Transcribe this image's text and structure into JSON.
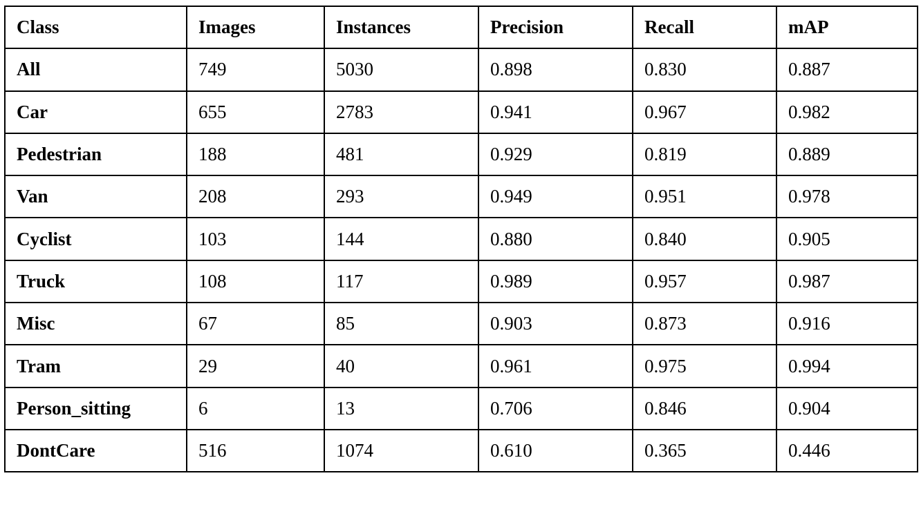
{
  "table": {
    "header": [
      "Class",
      "Images",
      "Instances",
      "Precision",
      "Recall",
      "mAP"
    ],
    "rows": [
      [
        "All",
        "749",
        "5030",
        "0.898",
        "0.830",
        "0.887"
      ],
      [
        "Car",
        "655",
        "2783",
        "0.941",
        "0.967",
        "0.982"
      ],
      [
        "Pedestrian",
        "188",
        "481",
        "0.929",
        "0.819",
        "0.889"
      ],
      [
        "Van",
        "208",
        "293",
        "0.949",
        "0.951",
        "0.978"
      ],
      [
        "Cyclist",
        "103",
        "144",
        "0.880",
        "0.840",
        "0.905"
      ],
      [
        "Truck",
        "108",
        "117",
        "0.989",
        "0.957",
        "0.987"
      ],
      [
        "Misc",
        "67",
        "85",
        "0.903",
        "0.873",
        "0.916"
      ],
      [
        "Tram",
        "29",
        "40",
        "0.961",
        "0.975",
        "0.994"
      ],
      [
        "Person_sitting",
        "6",
        "13",
        "0.706",
        "0.846",
        "0.904"
      ],
      [
        "DontCare",
        "516",
        "1074",
        "0.610",
        "0.365",
        "0.446"
      ]
    ]
  }
}
